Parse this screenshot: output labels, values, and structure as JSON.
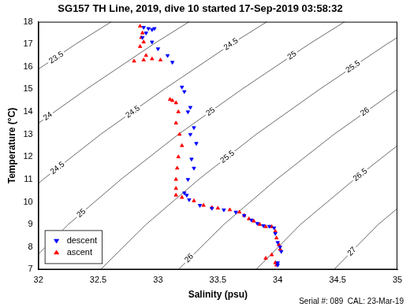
{
  "chart_data": {
    "type": "scatter",
    "title": "SG157 TH Line, 2019, dive 10 started 17-Sep-2019 03:58:32",
    "x_label": "Salinity (psu)",
    "y_label": "Temperature (°C)",
    "footer": "Serial #: 089  CAL: 23-Mar-19",
    "xlim": [
      32,
      35
    ],
    "ylim": [
      7,
      18
    ],
    "xticks": [
      32,
      32.5,
      33,
      33.5,
      34,
      34.5,
      35
    ],
    "yticks": [
      7,
      8,
      9,
      10,
      11,
      12,
      13,
      14,
      15,
      16,
      17,
      18
    ],
    "grid": false,
    "legend": "lower left",
    "series": [
      {
        "name": "descent",
        "color": "#0000ff",
        "marker": "triangle-down",
        "values": [
          [
            32.88,
            17.75
          ],
          [
            32.92,
            17.7
          ],
          [
            32.95,
            17.65
          ],
          [
            32.97,
            17.7
          ],
          [
            32.9,
            17.5
          ],
          [
            32.87,
            17.3
          ],
          [
            32.95,
            17.1
          ],
          [
            33.0,
            16.8
          ],
          [
            33.08,
            16.5
          ],
          [
            33.12,
            16.2
          ],
          [
            33.2,
            15.1
          ],
          [
            33.22,
            14.9
          ],
          [
            33.27,
            14.2
          ],
          [
            33.25,
            14.0
          ],
          [
            33.3,
            13.3
          ],
          [
            33.27,
            13.0
          ],
          [
            33.32,
            12.6
          ],
          [
            33.28,
            11.9
          ],
          [
            33.3,
            11.5
          ],
          [
            33.25,
            11.0
          ],
          [
            33.22,
            10.4
          ],
          [
            33.24,
            10.3
          ],
          [
            33.26,
            10.1
          ],
          [
            33.35,
            9.85
          ],
          [
            33.45,
            9.72
          ],
          [
            33.55,
            9.65
          ],
          [
            33.65,
            9.55
          ],
          [
            33.72,
            9.4
          ],
          [
            33.78,
            9.2
          ],
          [
            33.83,
            9.05
          ],
          [
            33.88,
            8.95
          ],
          [
            33.93,
            8.92
          ],
          [
            33.97,
            8.85
          ],
          [
            33.98,
            8.6
          ],
          [
            34.0,
            8.2
          ],
          [
            34.02,
            8.0
          ],
          [
            34.03,
            7.8
          ],
          [
            34.0,
            7.3
          ],
          [
            34.0,
            7.2
          ]
        ]
      },
      {
        "name": "ascent",
        "color": "#ff0000",
        "marker": "triangle-up",
        "values": [
          [
            32.85,
            17.8
          ],
          [
            32.87,
            17.5
          ],
          [
            32.86,
            17.3
          ],
          [
            32.88,
            17.1
          ],
          [
            32.85,
            16.9
          ],
          [
            32.9,
            16.5
          ],
          [
            32.95,
            16.35
          ],
          [
            32.88,
            16.3
          ],
          [
            32.8,
            16.25
          ],
          [
            33.02,
            16.3
          ],
          [
            33.1,
            14.55
          ],
          [
            33.12,
            14.5
          ],
          [
            33.15,
            14.4
          ],
          [
            33.17,
            14.0
          ],
          [
            33.15,
            13.5
          ],
          [
            33.18,
            13.0
          ],
          [
            33.2,
            12.5
          ],
          [
            33.17,
            12.0
          ],
          [
            33.16,
            11.5
          ],
          [
            33.15,
            11.0
          ],
          [
            33.15,
            10.6
          ],
          [
            33.15,
            10.3
          ],
          [
            33.2,
            10.2
          ],
          [
            33.3,
            10.05
          ],
          [
            33.38,
            9.85
          ],
          [
            33.45,
            9.75
          ],
          [
            33.5,
            9.72
          ],
          [
            33.6,
            9.65
          ],
          [
            33.68,
            9.55
          ],
          [
            33.72,
            9.4
          ],
          [
            33.76,
            9.25
          ],
          [
            33.8,
            9.15
          ],
          [
            33.85,
            9.0
          ],
          [
            33.9,
            8.9
          ],
          [
            33.95,
            8.9
          ],
          [
            33.98,
            8.7
          ],
          [
            33.99,
            8.4
          ],
          [
            34.01,
            8.1
          ],
          [
            34.02,
            7.9
          ],
          [
            33.95,
            7.65
          ],
          [
            33.9,
            7.5
          ],
          [
            33.98,
            7.3
          ],
          [
            33.99,
            7.2
          ]
        ]
      }
    ],
    "contours": [
      {
        "value": 23.5,
        "points": [
          [
            31.22,
            13
          ],
          [
            31.75,
            15
          ],
          [
            32.31,
            17
          ],
          [
            32.61,
            18
          ]
        ],
        "labels_at": [
          [
            32.15,
            16.4
          ]
        ]
      },
      {
        "value": 24,
        "points": [
          [
            31.39,
            11
          ],
          [
            31.87,
            13
          ],
          [
            32.4,
            15
          ],
          [
            32.96,
            17
          ],
          [
            33.26,
            18
          ]
        ],
        "labels_at": [
          [
            32.08,
            13.8
          ]
        ]
      },
      {
        "value": 24.5,
        "points": [
          [
            31.22,
            7
          ],
          [
            31.6,
            9
          ],
          [
            32.04,
            11
          ],
          [
            32.52,
            13
          ],
          [
            33.05,
            15
          ],
          [
            33.61,
            17
          ],
          [
            33.91,
            18
          ]
        ],
        "labels_at": [
          [
            32.16,
            11.5
          ],
          [
            32.79,
            14.0
          ],
          [
            33.61,
            17.0
          ]
        ]
      },
      {
        "value": 25,
        "points": [
          [
            31.87,
            7
          ],
          [
            32.25,
            9
          ],
          [
            32.69,
            11
          ],
          [
            33.17,
            13
          ],
          [
            33.7,
            15
          ],
          [
            34.26,
            17
          ],
          [
            34.56,
            18
          ]
        ],
        "labels_at": [
          [
            32.36,
            9.5
          ],
          [
            33.44,
            14.0
          ],
          [
            34.12,
            16.5
          ]
        ]
      },
      {
        "value": 25.5,
        "points": [
          [
            32.52,
            7
          ],
          [
            32.9,
            9
          ],
          [
            33.34,
            11
          ],
          [
            33.82,
            13
          ],
          [
            34.35,
            15
          ],
          [
            34.91,
            17
          ],
          [
            35.21,
            18
          ]
        ],
        "labels_at": [
          [
            33.58,
            12.0
          ],
          [
            34.63,
            16.0
          ]
        ]
      },
      {
        "value": 26,
        "points": [
          [
            33.17,
            7
          ],
          [
            33.55,
            9
          ],
          [
            33.99,
            11
          ],
          [
            34.47,
            13
          ],
          [
            35.0,
            15
          ],
          [
            35.56,
            17
          ]
        ],
        "labels_at": [
          [
            33.26,
            7.5
          ],
          [
            34.73,
            14.0
          ]
        ]
      },
      {
        "value": 26.5,
        "points": [
          [
            33.82,
            7
          ],
          [
            34.19,
            9
          ],
          [
            34.64,
            11
          ],
          [
            35.12,
            13
          ]
        ],
        "labels_at": [
          [
            34.69,
            11.2
          ]
        ]
      },
      {
        "value": 27,
        "points": [
          [
            34.47,
            7
          ],
          [
            34.84,
            9
          ],
          [
            35.29,
            11
          ]
        ],
        "labels_at": [
          [
            34.62,
            7.8
          ]
        ]
      }
    ]
  }
}
